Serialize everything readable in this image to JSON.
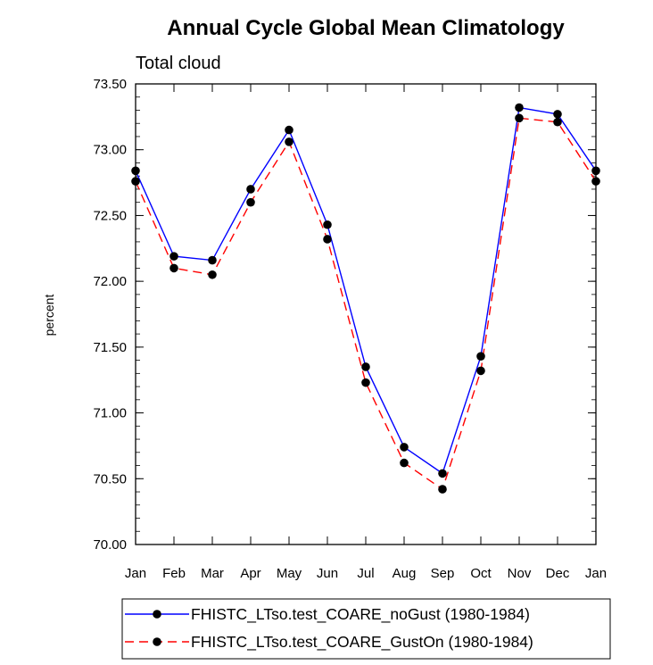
{
  "chart_data": {
    "type": "line",
    "title": "Annual Cycle Global Mean Climatology",
    "subtitle": "Total cloud",
    "xlabel": "",
    "ylabel": "percent",
    "categories": [
      "Jan",
      "Feb",
      "Mar",
      "Apr",
      "May",
      "Jun",
      "Jul",
      "Aug",
      "Sep",
      "Oct",
      "Nov",
      "Dec",
      "Jan"
    ],
    "yticks": [
      "70.00",
      "70.50",
      "71.00",
      "71.50",
      "72.00",
      "72.50",
      "73.00",
      "73.50"
    ],
    "ylim": [
      70.0,
      73.5
    ],
    "grid": false,
    "legend_position": "bottom",
    "series": [
      {
        "name": "FHISTC_LTso.test_COARE_noGust (1980-1984)",
        "color": "#0000ff",
        "dash": "solid",
        "values": [
          72.84,
          72.19,
          72.16,
          72.7,
          73.15,
          72.43,
          71.35,
          70.74,
          70.54,
          71.43,
          73.32,
          73.27,
          72.84
        ]
      },
      {
        "name": "FHISTC_LTso.test_COARE_GustOn (1980-1984)",
        "color": "#ff0000",
        "dash": "dashed",
        "values": [
          72.76,
          72.1,
          72.05,
          72.6,
          73.06,
          72.32,
          71.23,
          70.62,
          70.42,
          71.32,
          73.24,
          73.21,
          72.76
        ]
      }
    ]
  }
}
